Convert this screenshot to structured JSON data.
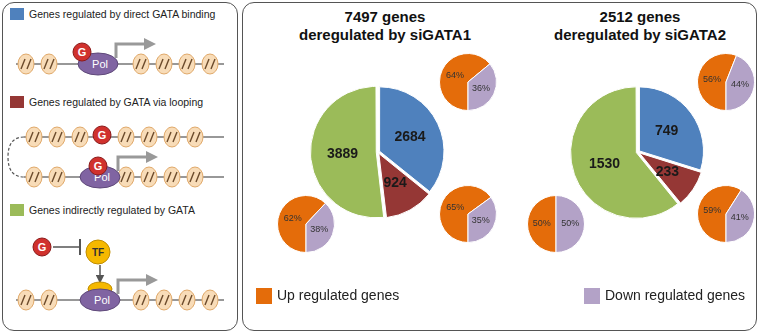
{
  "legend_panel": {
    "items": [
      {
        "label": "Genes regulated by direct GATA binding",
        "color": "#4f81bd"
      },
      {
        "label": "Genes regulated by GATA via looping",
        "color": "#953735"
      },
      {
        "label": "Genes indirectly regulated by GATA",
        "color": "#9bbb59"
      }
    ],
    "diagram_labels": {
      "gata": "G",
      "polymerase": "Pol",
      "factor": "TF"
    }
  },
  "series_legend": [
    {
      "label": "Up regulated genes",
      "color": "#e46c0a"
    },
    {
      "label": "Down regulated genes",
      "color": "#b3a2c7"
    }
  ],
  "chart_data": [
    {
      "type": "pie",
      "title": [
        "7497 genes",
        "deregulated by siGATA1"
      ],
      "values": [
        2684,
        924,
        3889
      ],
      "colors": [
        "#4f81bd",
        "#953735",
        "#9bbb59"
      ],
      "data_labels": true
    },
    {
      "type": "pie",
      "values": [
        64,
        36
      ],
      "value_labels": [
        "64%",
        "36%"
      ],
      "colors": [
        "#e46c0a",
        "#b3a2c7"
      ],
      "data_labels": true
    },
    {
      "type": "pie",
      "values": [
        65,
        35
      ],
      "value_labels": [
        "65%",
        "35%"
      ],
      "colors": [
        "#e46c0a",
        "#b3a2c7"
      ],
      "data_labels": true
    },
    {
      "type": "pie",
      "values": [
        62,
        38
      ],
      "value_labels": [
        "62%",
        "38%"
      ],
      "colors": [
        "#e46c0a",
        "#b3a2c7"
      ],
      "data_labels": true
    },
    {
      "type": "pie",
      "title": [
        "2512 genes",
        "deregulated by siGATA2"
      ],
      "values": [
        749,
        233,
        1530
      ],
      "colors": [
        "#4f81bd",
        "#953735",
        "#9bbb59"
      ],
      "data_labels": true
    },
    {
      "type": "pie",
      "values": [
        56,
        44
      ],
      "value_labels": [
        "56%",
        "44%"
      ],
      "colors": [
        "#e46c0a",
        "#b3a2c7"
      ],
      "data_labels": true
    },
    {
      "type": "pie",
      "values": [
        59,
        41
      ],
      "value_labels": [
        "59%",
        "41%"
      ],
      "colors": [
        "#e46c0a",
        "#b3a2c7"
      ],
      "data_labels": true
    },
    {
      "type": "pie",
      "values": [
        50,
        50
      ],
      "value_labels": [
        "50%",
        "50%"
      ],
      "colors": [
        "#e46c0a",
        "#b3a2c7"
      ],
      "data_labels": true
    }
  ]
}
